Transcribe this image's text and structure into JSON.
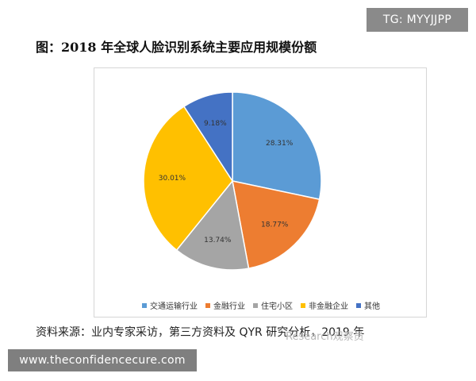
{
  "tag": "TG: MYYJJPP",
  "title": "图：2018 年全球人脸识别系统主要应用规模份额",
  "source": "资料来源：业内专家采访，第三方资料及 QYR 研究分析，2019 年",
  "watermark": "Research观察员",
  "footer": "www.theconfidencecure.com",
  "chart_data": {
    "type": "pie",
    "categories": [
      "交通运输行业",
      "金融行业",
      "住宅小区",
      "非金融企业",
      "其他"
    ],
    "values": [
      28.31,
      18.77,
      13.74,
      30.01,
      9.18
    ],
    "value_labels": [
      "28.31%",
      "18.77%",
      "13.74%",
      "30.01%",
      "9.18%"
    ],
    "colors": [
      "#5b9bd5",
      "#ed7d31",
      "#a5a5a5",
      "#ffc000",
      "#4472c4"
    ],
    "start_angle_deg": 0,
    "direction": "clockwise",
    "legend_position": "bottom"
  }
}
